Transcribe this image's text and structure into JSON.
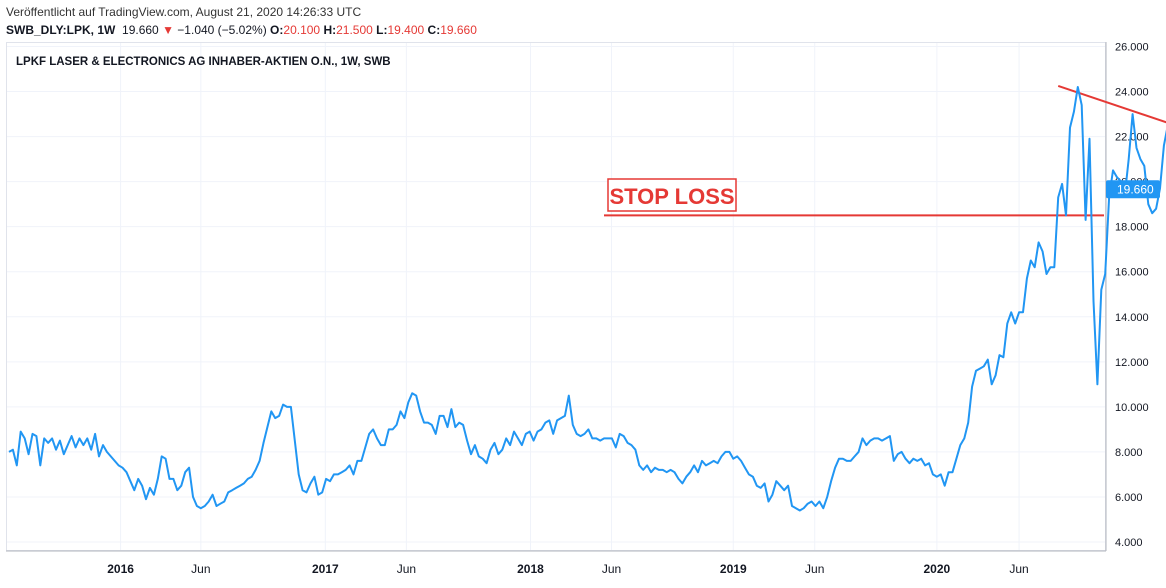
{
  "header": {
    "published": "Veröffentlicht auf TradingView.com, August 21, 2020 14:26:33 UTC",
    "symbol": "SWB_DLY:LPK, 1W",
    "last": "19.660",
    "change_arrow": "▼",
    "change": "−1.040 (−5.02%)",
    "o_label": "O:",
    "o_value": "20.100",
    "h_label": "H:",
    "h_value": "21.500",
    "l_label": "L:",
    "l_value": "19.400",
    "c_label": "C:",
    "c_value": "19.660"
  },
  "chart_title": "LPKF LASER & ELECTRONICS AG INHABER-AKTIEN O.N., 1W, SWB",
  "annotation": {
    "text": "STOP LOSS",
    "color": "#e53935"
  },
  "price_tag": "19.660",
  "colors": {
    "line": "#2196f3",
    "annotation": "#e53935",
    "grid": "#f0f3fa",
    "axis_text": "#131722",
    "tag_bg": "#2196f3"
  },
  "chart_data": {
    "type": "line",
    "series": [
      {
        "values": [
          8.0,
          8.1,
          7.4,
          8.9,
          8.6,
          7.9,
          8.8,
          8.7,
          7.4,
          8.6,
          8.4,
          8.6,
          8.1,
          8.5,
          7.9,
          8.3,
          8.7,
          8.2,
          8.6,
          8.3,
          8.6,
          8.1,
          8.8,
          7.8,
          8.3,
          8.0,
          7.8,
          7.6,
          7.4,
          7.3,
          7.1,
          6.7,
          6.3,
          6.8,
          6.5,
          5.9,
          6.4,
          6.1,
          6.8,
          7.8,
          7.7,
          6.8,
          6.8,
          6.3,
          6.5,
          7.1,
          7.3,
          6.0,
          5.6,
          5.5,
          5.6,
          5.8,
          6.1,
          5.6,
          5.7,
          5.8,
          6.2,
          6.3,
          6.4,
          6.5,
          6.6,
          6.8,
          6.9,
          7.2,
          7.6,
          8.4,
          9.1,
          9.8,
          9.5,
          9.6,
          10.1,
          10.0,
          10.0,
          8.5,
          7.0,
          6.3,
          6.2,
          6.6,
          6.9,
          6.1,
          6.2,
          6.8,
          6.7,
          7.0,
          7.0,
          7.1,
          7.2,
          7.4,
          7.0,
          7.6,
          7.6,
          8.2,
          8.8,
          9.0,
          8.6,
          8.3,
          8.3,
          9.0,
          9.0,
          9.2,
          9.8,
          9.5,
          10.2,
          10.6,
          10.5,
          9.8,
          9.3,
          9.3,
          9.2,
          8.8,
          9.6,
          9.6,
          9.1,
          9.9,
          9.1,
          9.3,
          9.2,
          8.5,
          7.9,
          8.3,
          7.8,
          7.7,
          7.5,
          8.1,
          8.4,
          7.9,
          8.1,
          8.6,
          8.3,
          8.9,
          8.6,
          8.3,
          8.8,
          8.9,
          8.5,
          8.9,
          9.0,
          9.3,
          9.4,
          8.8,
          9.4,
          9.5,
          9.6,
          10.5,
          9.2,
          8.8,
          8.7,
          8.8,
          9.0,
          8.6,
          8.6,
          8.5,
          8.6,
          8.6,
          8.6,
          8.2,
          8.8,
          8.7,
          8.4,
          8.3,
          8.1,
          7.4,
          7.2,
          7.4,
          7.1,
          7.3,
          7.2,
          7.2,
          7.1,
          7.2,
          7.1,
          6.8,
          6.6,
          6.9,
          7.1,
          7.4,
          7.1,
          7.6,
          7.4,
          7.5,
          7.6,
          7.5,
          7.8,
          8.0,
          8.0,
          7.7,
          7.8,
          7.6,
          7.3,
          7.0,
          6.9,
          6.5,
          6.4,
          6.6,
          5.8,
          6.1,
          6.7,
          6.5,
          6.3,
          6.5,
          5.6,
          5.5,
          5.4,
          5.5,
          5.7,
          5.8,
          5.6,
          5.8,
          5.5,
          6.0,
          6.7,
          7.3,
          7.7,
          7.7,
          7.6,
          7.6,
          7.8,
          8.0,
          8.6,
          8.3,
          8.5,
          8.6,
          8.6,
          8.5,
          8.6,
          8.7,
          7.6,
          7.9,
          8.0,
          7.7,
          7.5,
          7.7,
          7.6,
          7.7,
          7.4,
          7.5,
          7.0,
          6.9,
          7.0,
          6.5,
          7.1,
          7.1,
          7.7,
          8.3,
          8.6,
          9.3,
          10.9,
          11.6,
          11.7,
          11.8,
          12.1,
          11.0,
          11.4,
          12.3,
          12.2,
          13.7,
          14.2,
          13.7,
          14.2,
          14.2,
          15.7,
          16.5,
          16.2,
          17.3,
          16.9,
          15.9,
          16.2,
          16.2,
          19.3,
          19.9,
          18.5,
          22.4,
          23.1,
          24.2,
          23.4,
          18.3,
          21.9,
          14.7,
          11.0,
          15.2,
          15.9,
          19.3,
          20.5,
          20.2,
          20.0,
          19.4,
          21.0,
          23.0,
          21.5,
          21.0,
          20.7,
          19.0,
          18.6,
          18.8,
          19.7,
          21.6,
          22.5,
          22.7,
          21.8,
          20.2,
          20.0,
          19.66
        ]
      }
    ],
    "x_start": "2015-01-02",
    "x_interval": "1 week",
    "x_ticks": [
      "2016",
      "Jun",
      "2017",
      "Jun",
      "2018",
      "Jun",
      "2019",
      "Jun",
      "2020",
      "Jun"
    ],
    "y_ticks": [
      "26.000",
      "24.000",
      "22.000",
      "20.000",
      "18.000",
      "16.000",
      "14.000",
      "12.000",
      "10.000",
      "8.000",
      "6.000",
      "4.000"
    ],
    "ylim": [
      3.6,
      26.2
    ],
    "stop_loss_level": 18.5,
    "resistance_line": {
      "from": {
        "date": "2020-02-21",
        "value": 24.25
      },
      "to": {
        "date": "2020-12-04",
        "value": 21.85
      }
    },
    "grid": true,
    "legend": "none"
  }
}
